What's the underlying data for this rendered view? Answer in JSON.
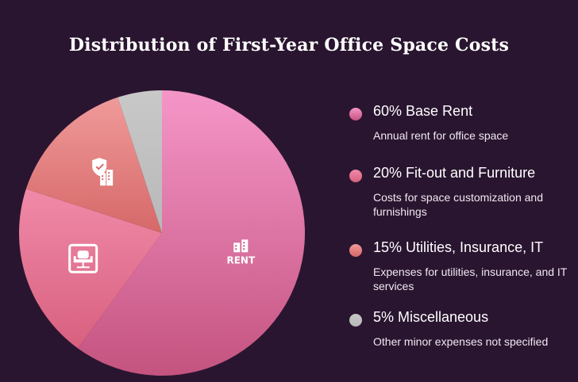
{
  "chart_data": {
    "type": "pie",
    "title": "Distribution of First-Year Office Space Costs",
    "slices": [
      {
        "label": "60% Base Rent",
        "value": 60,
        "description": "Annual rent for office space",
        "color": "#c4537f",
        "color_light": "#f596c8",
        "icon": "rent-icon"
      },
      {
        "label": "20% Fit-out and Furniture",
        "value": 20,
        "description": "Costs for space customization and furnishings",
        "color": "#d8607f",
        "color_light": "#f08aa8",
        "icon": "office-chair-icon"
      },
      {
        "label": "15% Utilities, Insurance, IT",
        "value": 15,
        "description": "Expenses for utilities, insurance, and IT services",
        "color": "#d66868",
        "color_light": "#f09a9a",
        "icon": "shield-building-icon"
      },
      {
        "label": "5% Miscellaneous",
        "value": 5,
        "description": "Other minor expenses not specified",
        "color": "#b8b8b8",
        "color_light": "#c8c8c8",
        "icon": ""
      }
    ],
    "rent_icon_text": "RENT",
    "legend_position": "right",
    "background": "#2a1530"
  }
}
